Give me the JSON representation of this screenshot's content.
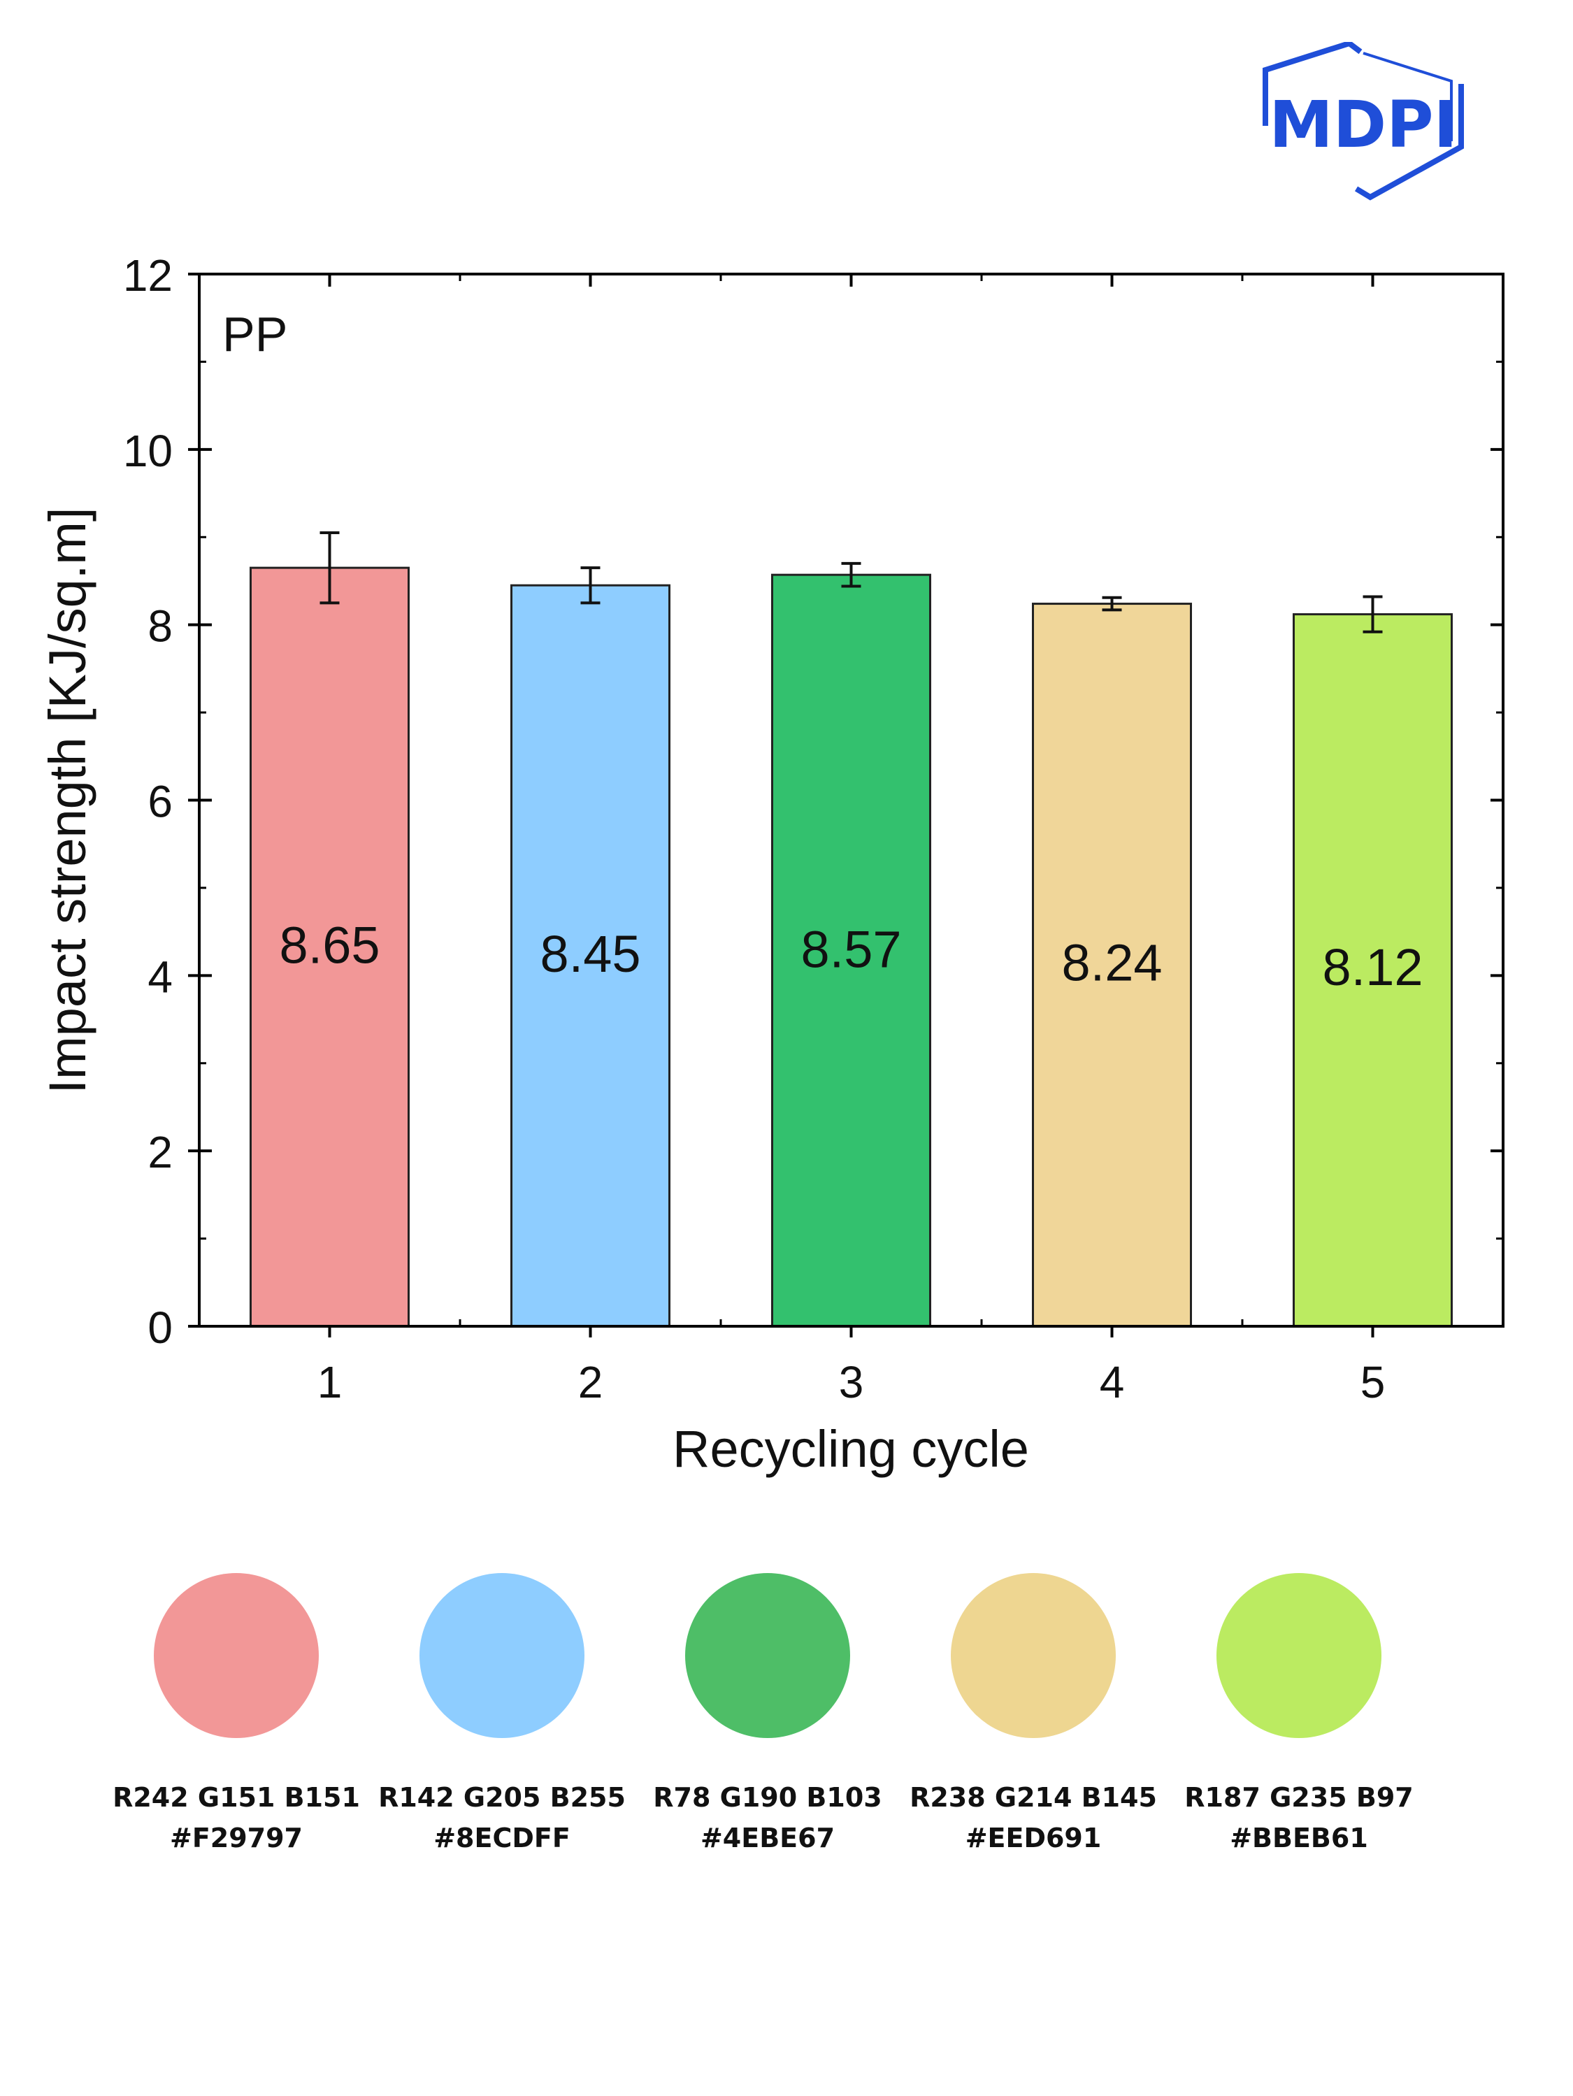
{
  "logo": {
    "text": "MDPI",
    "color": "#1f4ed8"
  },
  "chart_data": {
    "type": "bar",
    "annotation": "PP",
    "xlabel": "Recycling cycle",
    "ylabel": "Impact strength [KJ/sq.m]",
    "ylim": [
      0,
      12
    ],
    "yticks": [
      0,
      2,
      4,
      6,
      8,
      10,
      12
    ],
    "categories": [
      "1",
      "2",
      "3",
      "4",
      "5"
    ],
    "values": [
      8.65,
      8.45,
      8.57,
      8.24,
      8.12
    ],
    "errors": [
      0.4,
      0.2,
      0.13,
      0.07,
      0.2
    ],
    "value_labels": [
      "8.65",
      "8.45",
      "8.57",
      "8.24",
      "8.12"
    ],
    "label_values": [
      4.35,
      4.25,
      4.3,
      4.15,
      4.1
    ],
    "colors": [
      "#F29797",
      "#8ECDFF",
      "#33C16E",
      "#F0D699",
      "#BBEB61"
    ]
  },
  "swatches": [
    {
      "color": "#F29797",
      "rgb": "R242 G151 B151",
      "hex": "#F29797"
    },
    {
      "color": "#8ECDFF",
      "rgb": "R142 G205 B255",
      "hex": "#8ECDFF"
    },
    {
      "color": "#4EBE67",
      "rgb": "R78 G190 B103",
      "hex": "#4EBE67"
    },
    {
      "color": "#EED691",
      "rgb": "R238 G214 B145",
      "hex": "#EED691"
    },
    {
      "color": "#BBEB61",
      "rgb": "R187 G235 B97",
      "hex": "#BBEB61"
    }
  ]
}
